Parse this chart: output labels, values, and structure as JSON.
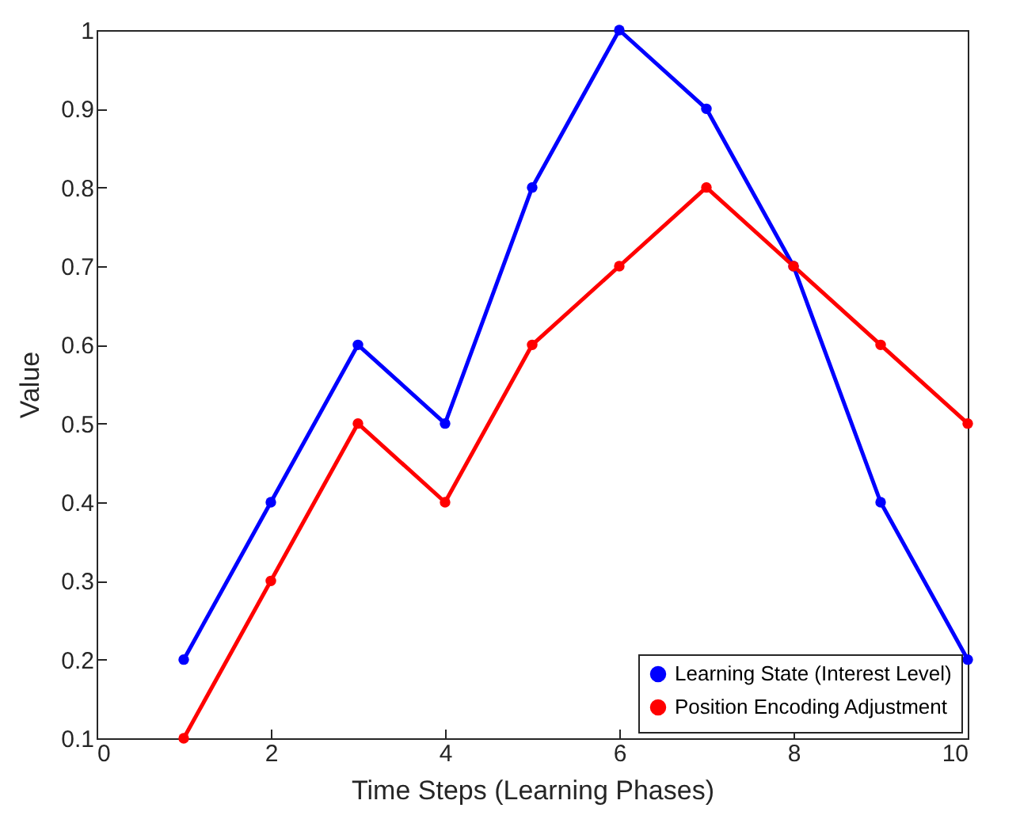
{
  "chart_data": {
    "type": "line",
    "xlabel": "Time Steps (Learning Phases)",
    "ylabel": "Value",
    "x": [
      1,
      2,
      3,
      4,
      5,
      6,
      7,
      8,
      9,
      10
    ],
    "series": [
      {
        "name": "Learning State (Interest Level)",
        "color": "#0000ff",
        "values": [
          0.2,
          0.4,
          0.6,
          0.5,
          0.8,
          1.0,
          0.9,
          0.7,
          0.4,
          0.2
        ]
      },
      {
        "name": "Position Encoding Adjustment",
        "color": "#ff0000",
        "values": [
          0.1,
          0.3,
          0.5,
          0.4,
          0.6,
          0.7,
          0.8,
          0.7,
          0.6,
          0.5
        ]
      }
    ],
    "xlim": [
      0,
      10
    ],
    "xticks": [
      0,
      2,
      4,
      6,
      8,
      10
    ],
    "ylim": [
      0.1,
      1
    ],
    "yticks": [
      0.1,
      0.2,
      0.3,
      0.4,
      0.5,
      0.6,
      0.7,
      0.8,
      0.9,
      1
    ],
    "legend": "bottom right",
    "marker": "circle",
    "line_style": "solid",
    "grid": false
  }
}
